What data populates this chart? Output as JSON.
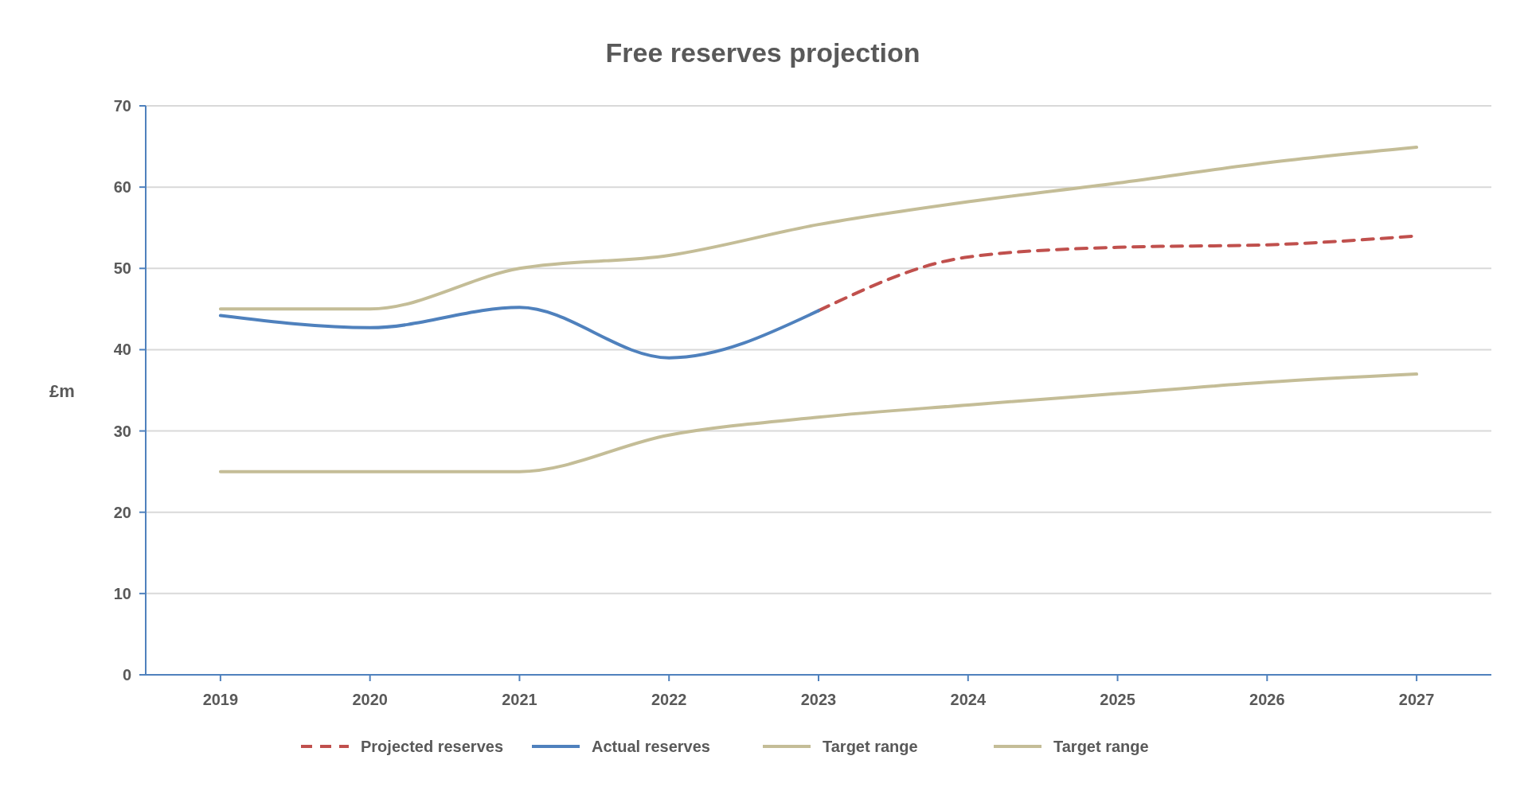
{
  "chart_data": {
    "type": "line",
    "title": "Free reserves projection",
    "ylabel": "£m",
    "categories": [
      "2019",
      "2020",
      "2021",
      "2022",
      "2023",
      "2024",
      "2025",
      "2026",
      "2027"
    ],
    "series": [
      {
        "name": "Projected reserves",
        "color": "#c0504d",
        "line_style": "dashed",
        "values": [
          null,
          null,
          null,
          null,
          44.8,
          51.4,
          52.6,
          52.9,
          54.0
        ]
      },
      {
        "name": "Actual reserves",
        "color": "#4f81bd",
        "line_style": "solid",
        "values": [
          44.2,
          42.7,
          45.2,
          39.0,
          44.8,
          null,
          null,
          null,
          null
        ]
      },
      {
        "name": "Target range",
        "color": "#c4bd97",
        "line_style": "solid",
        "values": [
          45,
          45,
          50,
          51.6,
          55.4,
          58.2,
          60.5,
          63,
          64.9
        ]
      },
      {
        "name": "Target range",
        "color": "#c4bd97",
        "line_style": "solid",
        "values": [
          25,
          25,
          25,
          29.5,
          31.7,
          33.2,
          34.6,
          36,
          37
        ]
      }
    ],
    "ylim": [
      0,
      70
    ],
    "yticks": [
      0,
      10,
      20,
      30,
      40,
      50,
      60,
      70
    ],
    "grid": "y",
    "legend": "bottom"
  }
}
